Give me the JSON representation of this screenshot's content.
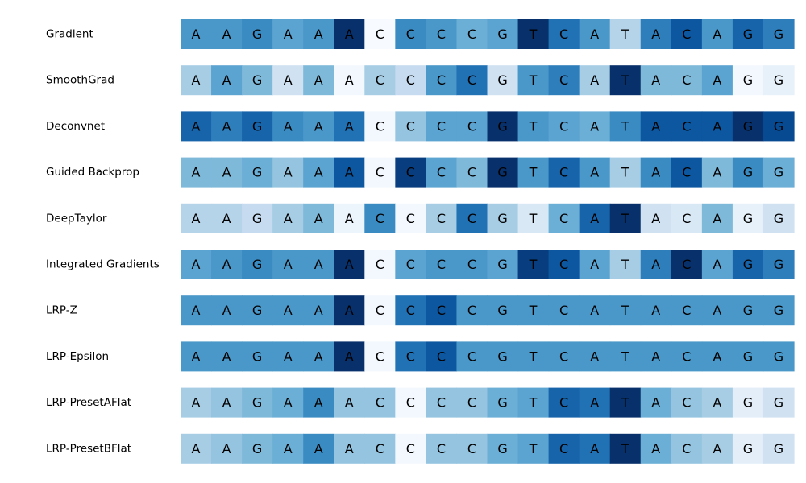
{
  "chart_data": {
    "type": "heatmap",
    "title": "",
    "xlabel": "",
    "ylabel": "",
    "sequence": [
      "A",
      "A",
      "G",
      "A",
      "A",
      "A",
      "C",
      "C",
      "C",
      "C",
      "G",
      "T",
      "C",
      "A",
      "T",
      "A",
      "C",
      "A",
      "G",
      "G"
    ],
    "colormap": "Blues",
    "value_range": [
      0,
      1
    ],
    "grid": false,
    "rows": [
      {
        "label": "Gradient",
        "values": [
          0.6,
          0.6,
          0.65,
          0.55,
          0.6,
          1.0,
          0.0,
          0.65,
          0.6,
          0.5,
          0.55,
          1.0,
          0.75,
          0.6,
          0.3,
          0.7,
          0.85,
          0.6,
          0.8,
          0.7
        ]
      },
      {
        "label": "SmoothGrad",
        "values": [
          0.35,
          0.55,
          0.45,
          0.2,
          0.45,
          0.02,
          0.35,
          0.25,
          0.6,
          0.75,
          0.2,
          0.6,
          0.7,
          0.35,
          1.0,
          0.45,
          0.45,
          0.55,
          0.02,
          0.08
        ]
      },
      {
        "label": "Deconvnet",
        "values": [
          0.8,
          0.7,
          0.8,
          0.65,
          0.6,
          0.75,
          0.02,
          0.4,
          0.55,
          0.55,
          1.0,
          0.6,
          0.55,
          0.5,
          0.65,
          0.85,
          0.85,
          0.85,
          1.0,
          0.9
        ]
      },
      {
        "label": "Guided Backprop",
        "values": [
          0.45,
          0.45,
          0.5,
          0.4,
          0.55,
          0.85,
          0.02,
          0.95,
          0.55,
          0.45,
          1.0,
          0.6,
          0.8,
          0.6,
          0.35,
          0.65,
          0.85,
          0.45,
          0.65,
          0.5
        ]
      },
      {
        "label": "DeepTaylor",
        "values": [
          0.3,
          0.3,
          0.25,
          0.35,
          0.45,
          0.05,
          0.65,
          0.02,
          0.35,
          0.75,
          0.35,
          0.15,
          0.5,
          0.8,
          1.0,
          0.2,
          0.15,
          0.45,
          0.08,
          0.2
        ]
      },
      {
        "label": "Integrated Gradients",
        "values": [
          0.55,
          0.6,
          0.65,
          0.6,
          0.6,
          1.0,
          0.02,
          0.55,
          0.6,
          0.6,
          0.55,
          0.95,
          0.85,
          0.55,
          0.35,
          0.7,
          1.0,
          0.55,
          0.8,
          0.7
        ]
      },
      {
        "label": "LRP-Z",
        "values": [
          0.6,
          0.6,
          0.6,
          0.6,
          0.6,
          1.0,
          0.02,
          0.75,
          0.85,
          0.6,
          0.6,
          0.6,
          0.6,
          0.6,
          0.6,
          0.6,
          0.6,
          0.6,
          0.6,
          0.6
        ]
      },
      {
        "label": "LRP-Epsilon",
        "values": [
          0.6,
          0.6,
          0.6,
          0.6,
          0.6,
          1.0,
          0.02,
          0.75,
          0.85,
          0.6,
          0.6,
          0.6,
          0.6,
          0.6,
          0.6,
          0.6,
          0.6,
          0.6,
          0.6,
          0.6
        ]
      },
      {
        "label": "LRP-PresetAFlat",
        "values": [
          0.35,
          0.4,
          0.45,
          0.5,
          0.65,
          0.4,
          0.4,
          0.02,
          0.4,
          0.4,
          0.5,
          0.55,
          0.8,
          0.75,
          1.0,
          0.5,
          0.4,
          0.35,
          0.1,
          0.2
        ]
      },
      {
        "label": "LRP-PresetBFlat",
        "values": [
          0.35,
          0.4,
          0.45,
          0.5,
          0.65,
          0.4,
          0.4,
          0.02,
          0.4,
          0.4,
          0.5,
          0.55,
          0.8,
          0.75,
          1.0,
          0.5,
          0.4,
          0.35,
          0.1,
          0.2
        ]
      }
    ]
  }
}
